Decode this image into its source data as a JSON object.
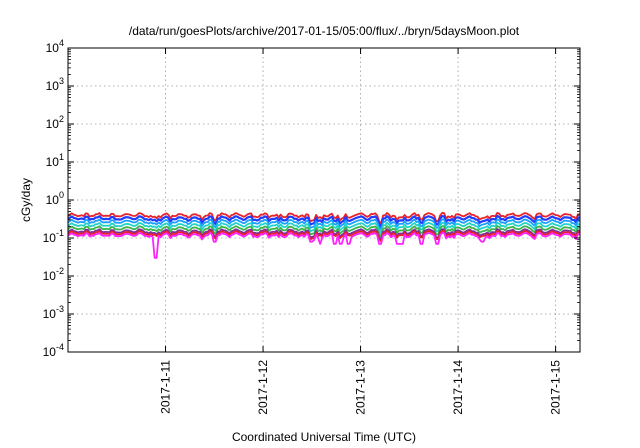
{
  "chart_data": {
    "type": "line",
    "title": "/data/run/goesPlots/archive/2017-01-15/05:00/flux/../bryn/5daysMoon.plot",
    "xlabel": "Coordinated Universal Time (UTC)",
    "ylabel": "cGy/day",
    "y_scale": "log",
    "ylim": [
      0.0001,
      10000
    ],
    "xlim": [
      "2017-01-10T00:00",
      "2017-01-15T06:00"
    ],
    "y_ticks": [
      {
        "base": "10",
        "exp": "4"
      },
      {
        "base": "10",
        "exp": "3"
      },
      {
        "base": "10",
        "exp": "2"
      },
      {
        "base": "10",
        "exp": "1"
      },
      {
        "base": "10",
        "exp": "0"
      },
      {
        "base": "10",
        "exp": "-1"
      },
      {
        "base": "10",
        "exp": "-2"
      },
      {
        "base": "10",
        "exp": "-3"
      },
      {
        "base": "10",
        "exp": "-4"
      }
    ],
    "x_ticks": [
      "2017-1-11",
      "2017-1-12",
      "2017-1-13",
      "2017-1-14",
      "2017-1-15"
    ],
    "grid": true,
    "legend": "none",
    "series": [
      {
        "color": "#e8212a",
        "baseline": 0.4,
        "dips": []
      },
      {
        "color": "#1f3cff",
        "baseline": 0.33,
        "dips": []
      },
      {
        "color": "#1a9fff",
        "baseline": 0.27,
        "dips": []
      },
      {
        "color": "#1fd4c8",
        "baseline": 0.22,
        "dips": []
      },
      {
        "color": "#3cb44b",
        "baseline": 0.18,
        "dips": []
      },
      {
        "color": "#7b2ea0",
        "baseline": 0.15,
        "dips": []
      },
      {
        "color": "#e8212a",
        "baseline": 0.135,
        "dips": []
      },
      {
        "color": "#ff21ff",
        "baseline": 0.12,
        "dips": [
          {
            "x": "2017-01-10T21:30",
            "y": 0.03
          },
          {
            "x": "2017-01-11T12:00",
            "y": 0.08
          },
          {
            "x": "2017-01-12T12:00",
            "y": 0.08
          },
          {
            "x": "2017-01-12T14:00",
            "y": 0.07
          },
          {
            "x": "2017-01-12T17:30",
            "y": 0.07
          },
          {
            "x": "2017-01-12T19:00",
            "y": 0.07
          },
          {
            "x": "2017-01-12T21:00",
            "y": 0.07
          },
          {
            "x": "2017-01-13T05:00",
            "y": 0.07
          },
          {
            "x": "2017-01-13T09:00",
            "y": 0.07
          },
          {
            "x": "2017-01-13T10:00",
            "y": 0.07
          },
          {
            "x": "2017-01-13T15:00",
            "y": 0.07
          },
          {
            "x": "2017-01-13T19:00",
            "y": 0.07
          },
          {
            "x": "2017-01-14T06:00",
            "y": 0.08
          }
        ]
      }
    ]
  }
}
